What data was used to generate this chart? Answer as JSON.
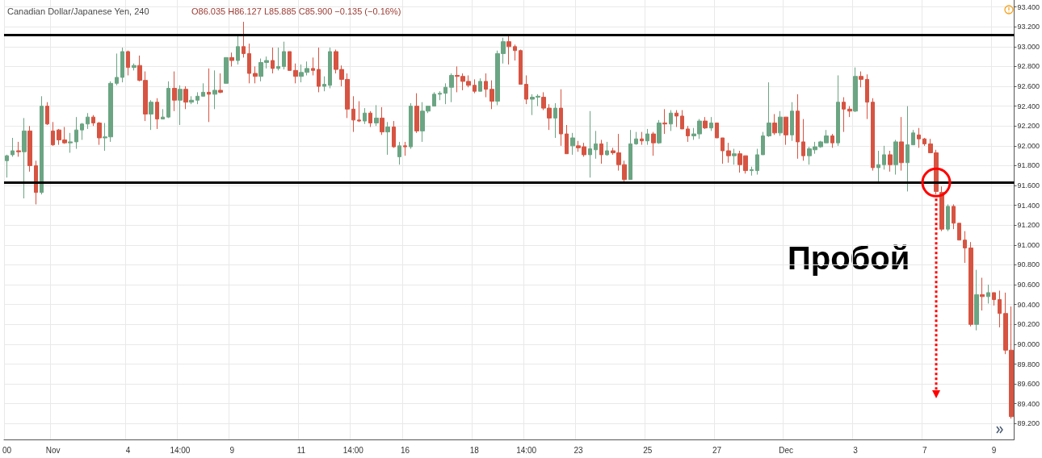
{
  "chart_data": {
    "type": "candlestick",
    "title": "Canadian Dollar/Japanese Yen, 240",
    "subtitle": "O86.035 H86.127 L85.885 C85.900 −0.135 (−0.16%)",
    "annotations": [
      "Пробой"
    ],
    "categories": [
      "00",
      null,
      null,
      null,
      null,
      null,
      null,
      null,
      "Nov",
      null,
      null,
      null,
      null,
      null,
      null,
      null,
      null,
      null,
      null,
      null,
      null,
      "4",
      null,
      null,
      null,
      null,
      null,
      null,
      null,
      null,
      "14:00",
      null,
      null,
      null,
      null,
      null,
      null,
      null,
      null,
      "9",
      null,
      null,
      null,
      null,
      null,
      null,
      null,
      null,
      null,
      null,
      null,
      "11",
      null,
      null,
      null,
      null,
      null,
      null,
      null,
      null,
      "14:00",
      null,
      null,
      null,
      null,
      null,
      null,
      null,
      null,
      "16",
      null,
      null,
      null,
      null,
      null,
      null,
      null,
      null,
      null,
      null,
      null,
      "18",
      null,
      null,
      null,
      null,
      null,
      null,
      null,
      null,
      "14:00",
      null,
      null,
      null,
      null,
      null,
      null,
      null,
      null,
      "23",
      null,
      null,
      null,
      null,
      null,
      null,
      null,
      null,
      null,
      null,
      null,
      "25",
      null,
      null,
      null,
      null,
      null,
      null,
      null,
      null,
      null,
      null,
      null,
      "27",
      null,
      null,
      null,
      null,
      null,
      null,
      null,
      null,
      null,
      null,
      null,
      "Dec",
      null,
      null,
      null,
      null,
      null,
      null,
      null,
      null,
      null,
      null,
      null,
      "3",
      null,
      null,
      null,
      null,
      null,
      null,
      null,
      null,
      null,
      null,
      null,
      "7",
      null,
      null,
      null,
      null,
      null,
      null,
      null,
      null,
      null,
      null,
      null,
      "9",
      null,
      null,
      null
    ],
    "ohlc": [
      [
        91.85,
        91.91,
        91.68,
        91.9
      ],
      [
        91.91,
        92.08,
        91.89,
        91.95
      ],
      [
        91.95,
        92.04,
        91.89,
        91.94
      ],
      [
        91.94,
        92.28,
        91.47,
        92.15
      ],
      [
        92.15,
        92.2,
        91.74,
        91.8
      ],
      [
        91.8,
        91.85,
        91.41,
        91.53
      ],
      [
        91.53,
        92.5,
        91.51,
        92.4
      ],
      [
        92.4,
        92.44,
        92.21,
        92.22
      ],
      [
        92.15,
        92.24,
        92.0,
        92.01
      ],
      [
        92.16,
        92.17,
        92.01,
        92.06
      ],
      [
        92.06,
        92.19,
        92.02,
        92.03
      ],
      [
        92.03,
        92.13,
        91.93,
        92.04
      ],
      [
        92.04,
        92.29,
        91.97,
        92.16
      ],
      [
        92.16,
        92.23,
        92.06,
        92.22
      ],
      [
        92.22,
        92.33,
        92.17,
        92.29
      ],
      [
        92.29,
        92.31,
        92.2,
        92.23
      ],
      [
        92.23,
        92.24,
        92.01,
        92.08
      ],
      [
        92.08,
        92.23,
        91.95,
        92.09
      ],
      [
        92.09,
        92.65,
        92.04,
        92.63
      ],
      [
        92.63,
        92.93,
        92.61,
        92.69
      ],
      [
        92.69,
        92.99,
        92.64,
        92.95
      ],
      [
        92.95,
        92.96,
        92.71,
        92.79
      ],
      [
        92.79,
        92.83,
        92.76,
        92.81
      ],
      [
        92.81,
        92.91,
        92.65,
        92.66
      ],
      [
        92.66,
        92.75,
        92.25,
        92.32
      ],
      [
        92.32,
        92.46,
        92.16,
        92.44
      ],
      [
        92.44,
        92.48,
        92.17,
        92.27
      ],
      [
        92.27,
        92.37,
        92.27,
        92.29
      ],
      [
        92.29,
        92.65,
        92.28,
        92.58
      ],
      [
        92.58,
        92.75,
        92.35,
        92.46
      ],
      [
        92.46,
        92.61,
        92.21,
        92.57
      ],
      [
        92.57,
        92.6,
        92.37,
        92.44
      ],
      [
        92.44,
        92.5,
        92.42,
        92.46
      ],
      [
        92.46,
        92.54,
        92.42,
        92.5
      ],
      [
        92.5,
        92.63,
        92.5,
        92.54
      ],
      [
        92.54,
        92.78,
        92.24,
        92.52
      ],
      [
        92.52,
        92.76,
        92.37,
        92.56
      ],
      [
        92.56,
        92.73,
        92.53,
        92.54
      ],
      [
        92.63,
        92.89,
        92.63,
        92.89
      ],
      [
        92.89,
        92.94,
        92.8,
        92.86
      ],
      [
        92.86,
        93.11,
        92.82,
        93.0
      ],
      [
        93.0,
        93.25,
        92.89,
        92.93
      ],
      [
        92.93,
        93.03,
        92.63,
        92.73
      ],
      [
        92.73,
        92.8,
        92.63,
        92.7
      ],
      [
        92.7,
        92.88,
        92.65,
        92.84
      ],
      [
        92.84,
        92.9,
        92.78,
        92.86
      ],
      [
        92.86,
        92.99,
        92.73,
        92.78
      ],
      [
        92.78,
        92.99,
        92.76,
        92.8
      ],
      [
        92.8,
        93.05,
        92.77,
        92.95
      ],
      [
        92.95,
        92.95,
        92.76,
        92.76
      ],
      [
        92.76,
        92.83,
        92.63,
        92.7
      ],
      [
        92.7,
        92.82,
        92.64,
        92.74
      ],
      [
        92.74,
        92.85,
        92.71,
        92.78
      ],
      [
        92.78,
        92.89,
        92.71,
        92.76
      ],
      [
        92.77,
        92.99,
        92.54,
        92.6
      ],
      [
        92.6,
        92.7,
        92.55,
        92.62
      ],
      [
        92.61,
        92.99,
        92.58,
        92.95
      ],
      [
        92.95,
        92.97,
        92.73,
        92.77
      ],
      [
        92.77,
        92.81,
        92.6,
        92.67
      ],
      [
        92.67,
        92.73,
        92.28,
        92.37
      ],
      [
        92.37,
        92.5,
        92.14,
        92.26
      ],
      [
        92.26,
        92.45,
        92.24,
        92.25
      ],
      [
        92.25,
        92.38,
        92.22,
        92.33
      ],
      [
        92.33,
        92.35,
        92.19,
        92.23
      ],
      [
        92.23,
        92.41,
        92.2,
        92.28
      ],
      [
        92.28,
        92.39,
        92.11,
        92.14
      ],
      [
        92.14,
        92.24,
        91.91,
        92.19
      ],
      [
        92.19,
        92.25,
        91.98,
        91.99
      ],
      [
        91.89,
        92.04,
        91.81,
        92.0
      ],
      [
        92.0,
        92.04,
        91.9,
        91.99
      ],
      [
        91.99,
        92.43,
        91.97,
        92.4
      ],
      [
        92.4,
        92.53,
        92.13,
        92.15
      ],
      [
        92.15,
        92.44,
        92.04,
        92.35
      ],
      [
        92.35,
        92.4,
        92.33,
        92.4
      ],
      [
        92.4,
        92.54,
        92.4,
        92.52
      ],
      [
        92.52,
        92.55,
        92.46,
        92.53
      ],
      [
        92.53,
        92.63,
        92.42,
        92.59
      ],
      [
        92.59,
        92.73,
        92.44,
        92.71
      ],
      [
        92.71,
        92.8,
        92.54,
        92.7
      ],
      [
        92.7,
        92.73,
        92.56,
        92.65
      ],
      [
        92.65,
        92.71,
        92.59,
        92.61
      ],
      [
        92.61,
        92.67,
        92.53,
        92.55
      ],
      [
        92.55,
        92.68,
        92.55,
        92.65
      ],
      [
        92.65,
        92.73,
        92.49,
        92.57
      ],
      [
        92.57,
        92.66,
        92.37,
        92.45
      ],
      [
        92.45,
        92.96,
        92.41,
        92.93
      ],
      [
        92.93,
        93.09,
        92.83,
        93.05
      ],
      [
        93.05,
        93.11,
        92.82,
        93.0
      ],
      [
        93.0,
        93.02,
        92.86,
        92.96
      ],
      [
        92.96,
        92.97,
        92.62,
        92.62
      ],
      [
        92.62,
        92.71,
        92.42,
        92.47
      ],
      [
        92.47,
        92.52,
        92.31,
        92.49
      ],
      [
        92.49,
        92.52,
        92.4,
        92.5
      ],
      [
        92.49,
        92.54,
        92.36,
        92.38
      ],
      [
        92.38,
        92.42,
        92.16,
        92.28
      ],
      [
        92.28,
        92.43,
        92.08,
        92.38
      ],
      [
        92.38,
        92.57,
        92.0,
        92.12
      ],
      [
        92.12,
        92.21,
        91.92,
        91.92
      ],
      [
        92.0,
        92.13,
        91.91,
        92.08
      ],
      [
        92.0,
        92.05,
        91.94,
        91.98
      ],
      [
        91.99,
        92.03,
        91.89,
        91.91
      ],
      [
        91.91,
        92.35,
        91.68,
        91.97
      ],
      [
        91.96,
        92.15,
        91.87,
        92.02
      ],
      [
        92.02,
        92.06,
        91.82,
        91.91
      ],
      [
        91.91,
        92.04,
        91.9,
        91.95
      ],
      [
        91.95,
        91.98,
        91.91,
        91.93
      ],
      [
        91.93,
        92.12,
        91.75,
        91.81
      ],
      [
        91.81,
        91.85,
        91.64,
        91.66
      ],
      [
        91.66,
        92.16,
        91.66,
        92.02
      ],
      [
        92.02,
        92.14,
        92.01,
        92.07
      ],
      [
        92.07,
        92.14,
        92.01,
        92.05
      ],
      [
        92.05,
        92.17,
        92.01,
        92.12
      ],
      [
        92.12,
        92.14,
        91.9,
        92.03
      ],
      [
        92.03,
        92.26,
        92.02,
        92.23
      ],
      [
        92.23,
        92.37,
        92.12,
        92.22
      ],
      [
        92.22,
        92.36,
        92.15,
        92.33
      ],
      [
        92.33,
        92.36,
        92.19,
        92.3
      ],
      [
        92.3,
        92.36,
        92.17,
        92.17
      ],
      [
        92.17,
        92.2,
        92.04,
        92.1
      ],
      [
        92.1,
        92.18,
        92.06,
        92.12
      ],
      [
        92.12,
        92.27,
        92.07,
        92.25
      ],
      [
        92.25,
        92.29,
        92.17,
        92.18
      ],
      [
        92.18,
        92.29,
        92.15,
        92.23
      ],
      [
        92.23,
        92.23,
        92.08,
        92.08
      ],
      [
        92.08,
        92.08,
        91.82,
        91.95
      ],
      [
        91.95,
        92.03,
        91.83,
        91.9
      ],
      [
        91.9,
        91.97,
        91.81,
        91.92
      ],
      [
        91.92,
        91.95,
        91.73,
        91.81
      ],
      [
        91.9,
        91.9,
        91.72,
        91.75
      ],
      [
        91.75,
        91.79,
        91.7,
        91.76
      ],
      [
        91.75,
        91.97,
        91.71,
        91.91
      ],
      [
        91.91,
        92.14,
        91.91,
        92.1
      ],
      [
        92.1,
        92.64,
        92.09,
        92.23
      ],
      [
        92.23,
        92.32,
        92.11,
        92.13
      ],
      [
        92.13,
        92.35,
        92.1,
        92.29
      ],
      [
        92.29,
        92.29,
        92.01,
        92.11
      ],
      [
        92.11,
        92.44,
        92.05,
        92.35
      ],
      [
        92.35,
        92.52,
        91.87,
        92.04
      ],
      [
        92.04,
        92.27,
        91.85,
        91.9
      ],
      [
        91.9,
        91.99,
        91.81,
        91.97
      ],
      [
        91.96,
        92.04,
        91.92,
        91.99
      ],
      [
        91.99,
        92.05,
        91.98,
        92.04
      ],
      [
        92.03,
        92.16,
        92.03,
        92.1
      ],
      [
        92.1,
        92.12,
        91.98,
        92.03
      ],
      [
        92.03,
        92.71,
        92.0,
        92.44
      ],
      [
        92.44,
        92.49,
        92.14,
        92.37
      ],
      [
        92.37,
        92.4,
        92.29,
        92.35
      ],
      [
        92.35,
        92.79,
        92.34,
        92.7
      ],
      [
        92.7,
        92.75,
        92.59,
        92.67
      ],
      [
        92.67,
        92.72,
        92.27,
        92.44
      ],
      [
        92.44,
        92.48,
        91.75,
        91.78
      ],
      [
        91.78,
        91.95,
        91.64,
        91.81
      ],
      [
        91.81,
        92.0,
        91.76,
        91.91
      ],
      [
        91.91,
        91.95,
        91.74,
        91.81
      ],
      [
        91.81,
        92.06,
        91.71,
        92.04
      ],
      [
        92.04,
        92.29,
        91.75,
        91.83
      ],
      [
        91.83,
        92.4,
        91.54,
        92.01
      ],
      [
        92.01,
        92.16,
        92.01,
        92.13
      ],
      [
        92.11,
        92.18,
        91.98,
        92.07
      ],
      [
        92.07,
        92.08,
        92.0,
        92.02
      ],
      [
        92.02,
        92.07,
        91.93,
        91.93
      ],
      [
        91.93,
        91.96,
        91.51,
        91.54
      ],
      [
        91.53,
        91.59,
        91.14,
        91.16
      ],
      [
        91.16,
        91.41,
        91.14,
        91.39
      ],
      [
        91.39,
        91.41,
        91.16,
        91.22
      ],
      [
        91.22,
        91.22,
        91.05,
        91.05
      ],
      [
        91.05,
        91.14,
        90.82,
        90.97
      ],
      [
        90.97,
        91.03,
        90.18,
        90.2
      ],
      [
        90.2,
        90.75,
        90.14,
        90.5
      ],
      [
        90.5,
        90.67,
        90.34,
        90.48
      ],
      [
        90.48,
        90.6,
        90.41,
        90.52
      ],
      [
        90.52,
        90.52,
        90.39,
        90.45
      ],
      [
        90.45,
        90.54,
        90.17,
        90.31
      ],
      [
        90.31,
        90.52,
        89.9,
        89.94
      ],
      [
        89.94,
        90.38,
        89.25,
        89.27
      ]
    ],
    "colors": [
      "#6ba583",
      "#6ba583",
      "#d75442",
      "#6ba583",
      "#d75442",
      "#d75442",
      "#6ba583",
      "#d75442",
      "#d75442",
      "#d75442",
      "#d75442",
      "#6ba583",
      "#6ba583",
      "#6ba583",
      "#6ba583",
      "#d75442",
      "#d75442",
      "#6ba583",
      "#6ba583",
      "#6ba583",
      "#6ba583",
      "#d75442",
      "#6ba583",
      "#d75442",
      "#d75442",
      "#6ba583",
      "#d75442",
      "#6ba583",
      "#6ba583",
      "#d75442",
      "#6ba583",
      "#d75442",
      "#6ba583",
      "#6ba583",
      "#6ba583",
      "#d75442",
      "#6ba583",
      "#d75442",
      "#6ba583",
      "#d75442",
      "#6ba583",
      "#d75442",
      "#d75442",
      "#d75442",
      "#6ba583",
      "#6ba583",
      "#d75442",
      "#6ba583",
      "#6ba583",
      "#d75442",
      "#d75442",
      "#6ba583",
      "#6ba583",
      "#d75442",
      "#d75442",
      "#6ba583",
      "#6ba583",
      "#d75442",
      "#d75442",
      "#d75442",
      "#d75442",
      "#d75442",
      "#6ba583",
      "#d75442",
      "#6ba583",
      "#d75442",
      "#6ba583",
      "#d75442",
      "#6ba583",
      "#d75442",
      "#6ba583",
      "#d75442",
      "#6ba583",
      "#6ba583",
      "#6ba583",
      "#6ba583",
      "#6ba583",
      "#6ba583",
      "#d75442",
      "#d75442",
      "#d75442",
      "#d75442",
      "#6ba583",
      "#d75442",
      "#d75442",
      "#6ba583",
      "#6ba583",
      "#d75442",
      "#d75442",
      "#d75442",
      "#d75442",
      "#6ba583",
      "#6ba583",
      "#d75442",
      "#d75442",
      "#6ba583",
      "#d75442",
      "#d75442",
      "#6ba583",
      "#d75442",
      "#d75442",
      "#6ba583",
      "#6ba583",
      "#d75442",
      "#6ba583",
      "#d75442",
      "#d75442",
      "#d75442",
      "#6ba583",
      "#6ba583",
      "#d75442",
      "#6ba583",
      "#d75442",
      "#6ba583",
      "#d75442",
      "#6ba583",
      "#d75442",
      "#d75442",
      "#d75442",
      "#6ba583",
      "#6ba583",
      "#d75442",
      "#6ba583",
      "#d75442",
      "#d75442",
      "#d75442",
      "#6ba583",
      "#d75442",
      "#d75442",
      "#6ba583",
      "#6ba583",
      "#6ba583",
      "#6ba583",
      "#d75442",
      "#6ba583",
      "#d75442",
      "#6ba583",
      "#d75442",
      "#d75442",
      "#6ba583",
      "#6ba583",
      "#6ba583",
      "#6ba583",
      "#d75442",
      "#6ba583",
      "#d75442",
      "#d75442",
      "#6ba583",
      "#d75442",
      "#d75442",
      "#d75442",
      "#6ba583",
      "#6ba583",
      "#d75442",
      "#6ba583",
      "#d75442",
      "#6ba583",
      "#6ba583",
      "#d75442",
      "#d75442",
      "#d75442",
      "#d75442",
      "#d75442",
      "#6ba583",
      "#d75442",
      "#d75442",
      "#d75442",
      "#d75442",
      "#6ba583",
      "#d75442",
      "#6ba583",
      "#d75442",
      "#d75442",
      "#d75442",
      "#d75442"
    ],
    "ylim": [
      89.04,
      93.47
    ],
    "yticks": [
      {
        "value": 89.2,
        "label": "89.200"
      },
      {
        "value": 89.4,
        "label": "89.400"
      },
      {
        "value": 89.6,
        "label": "89.600"
      },
      {
        "value": 89.8,
        "label": "89.800"
      },
      {
        "value": 90.0,
        "label": "90.000"
      },
      {
        "value": 90.2,
        "label": "90.200"
      },
      {
        "value": 90.4,
        "label": "90.400"
      },
      {
        "value": 90.6,
        "label": "90.600"
      },
      {
        "value": 90.8,
        "label": "90.800"
      },
      {
        "value": 91.0,
        "label": "91.000"
      },
      {
        "value": 91.2,
        "label": "91.200"
      },
      {
        "value": 91.4,
        "label": "91.400"
      },
      {
        "value": 91.6,
        "label": "91.600"
      },
      {
        "value": 91.8,
        "label": "91.800"
      },
      {
        "value": 92.0,
        "label": "92.000"
      },
      {
        "value": 92.2,
        "label": "92.200"
      },
      {
        "value": 92.4,
        "label": "92.400"
      },
      {
        "value": 92.6,
        "label": "92.600"
      },
      {
        "value": 92.8,
        "label": "92.800"
      },
      {
        "value": 93.0,
        "label": "93.000"
      },
      {
        "value": 93.2,
        "label": "93.200"
      },
      {
        "value": 93.4,
        "label": "93.400"
      }
    ],
    "grid": true,
    "ref_lines": [
      {
        "axis": "y",
        "value": 93.12,
        "color": "#000000"
      },
      {
        "axis": "y",
        "value": 91.63,
        "color": "#000000"
      }
    ]
  }
}
